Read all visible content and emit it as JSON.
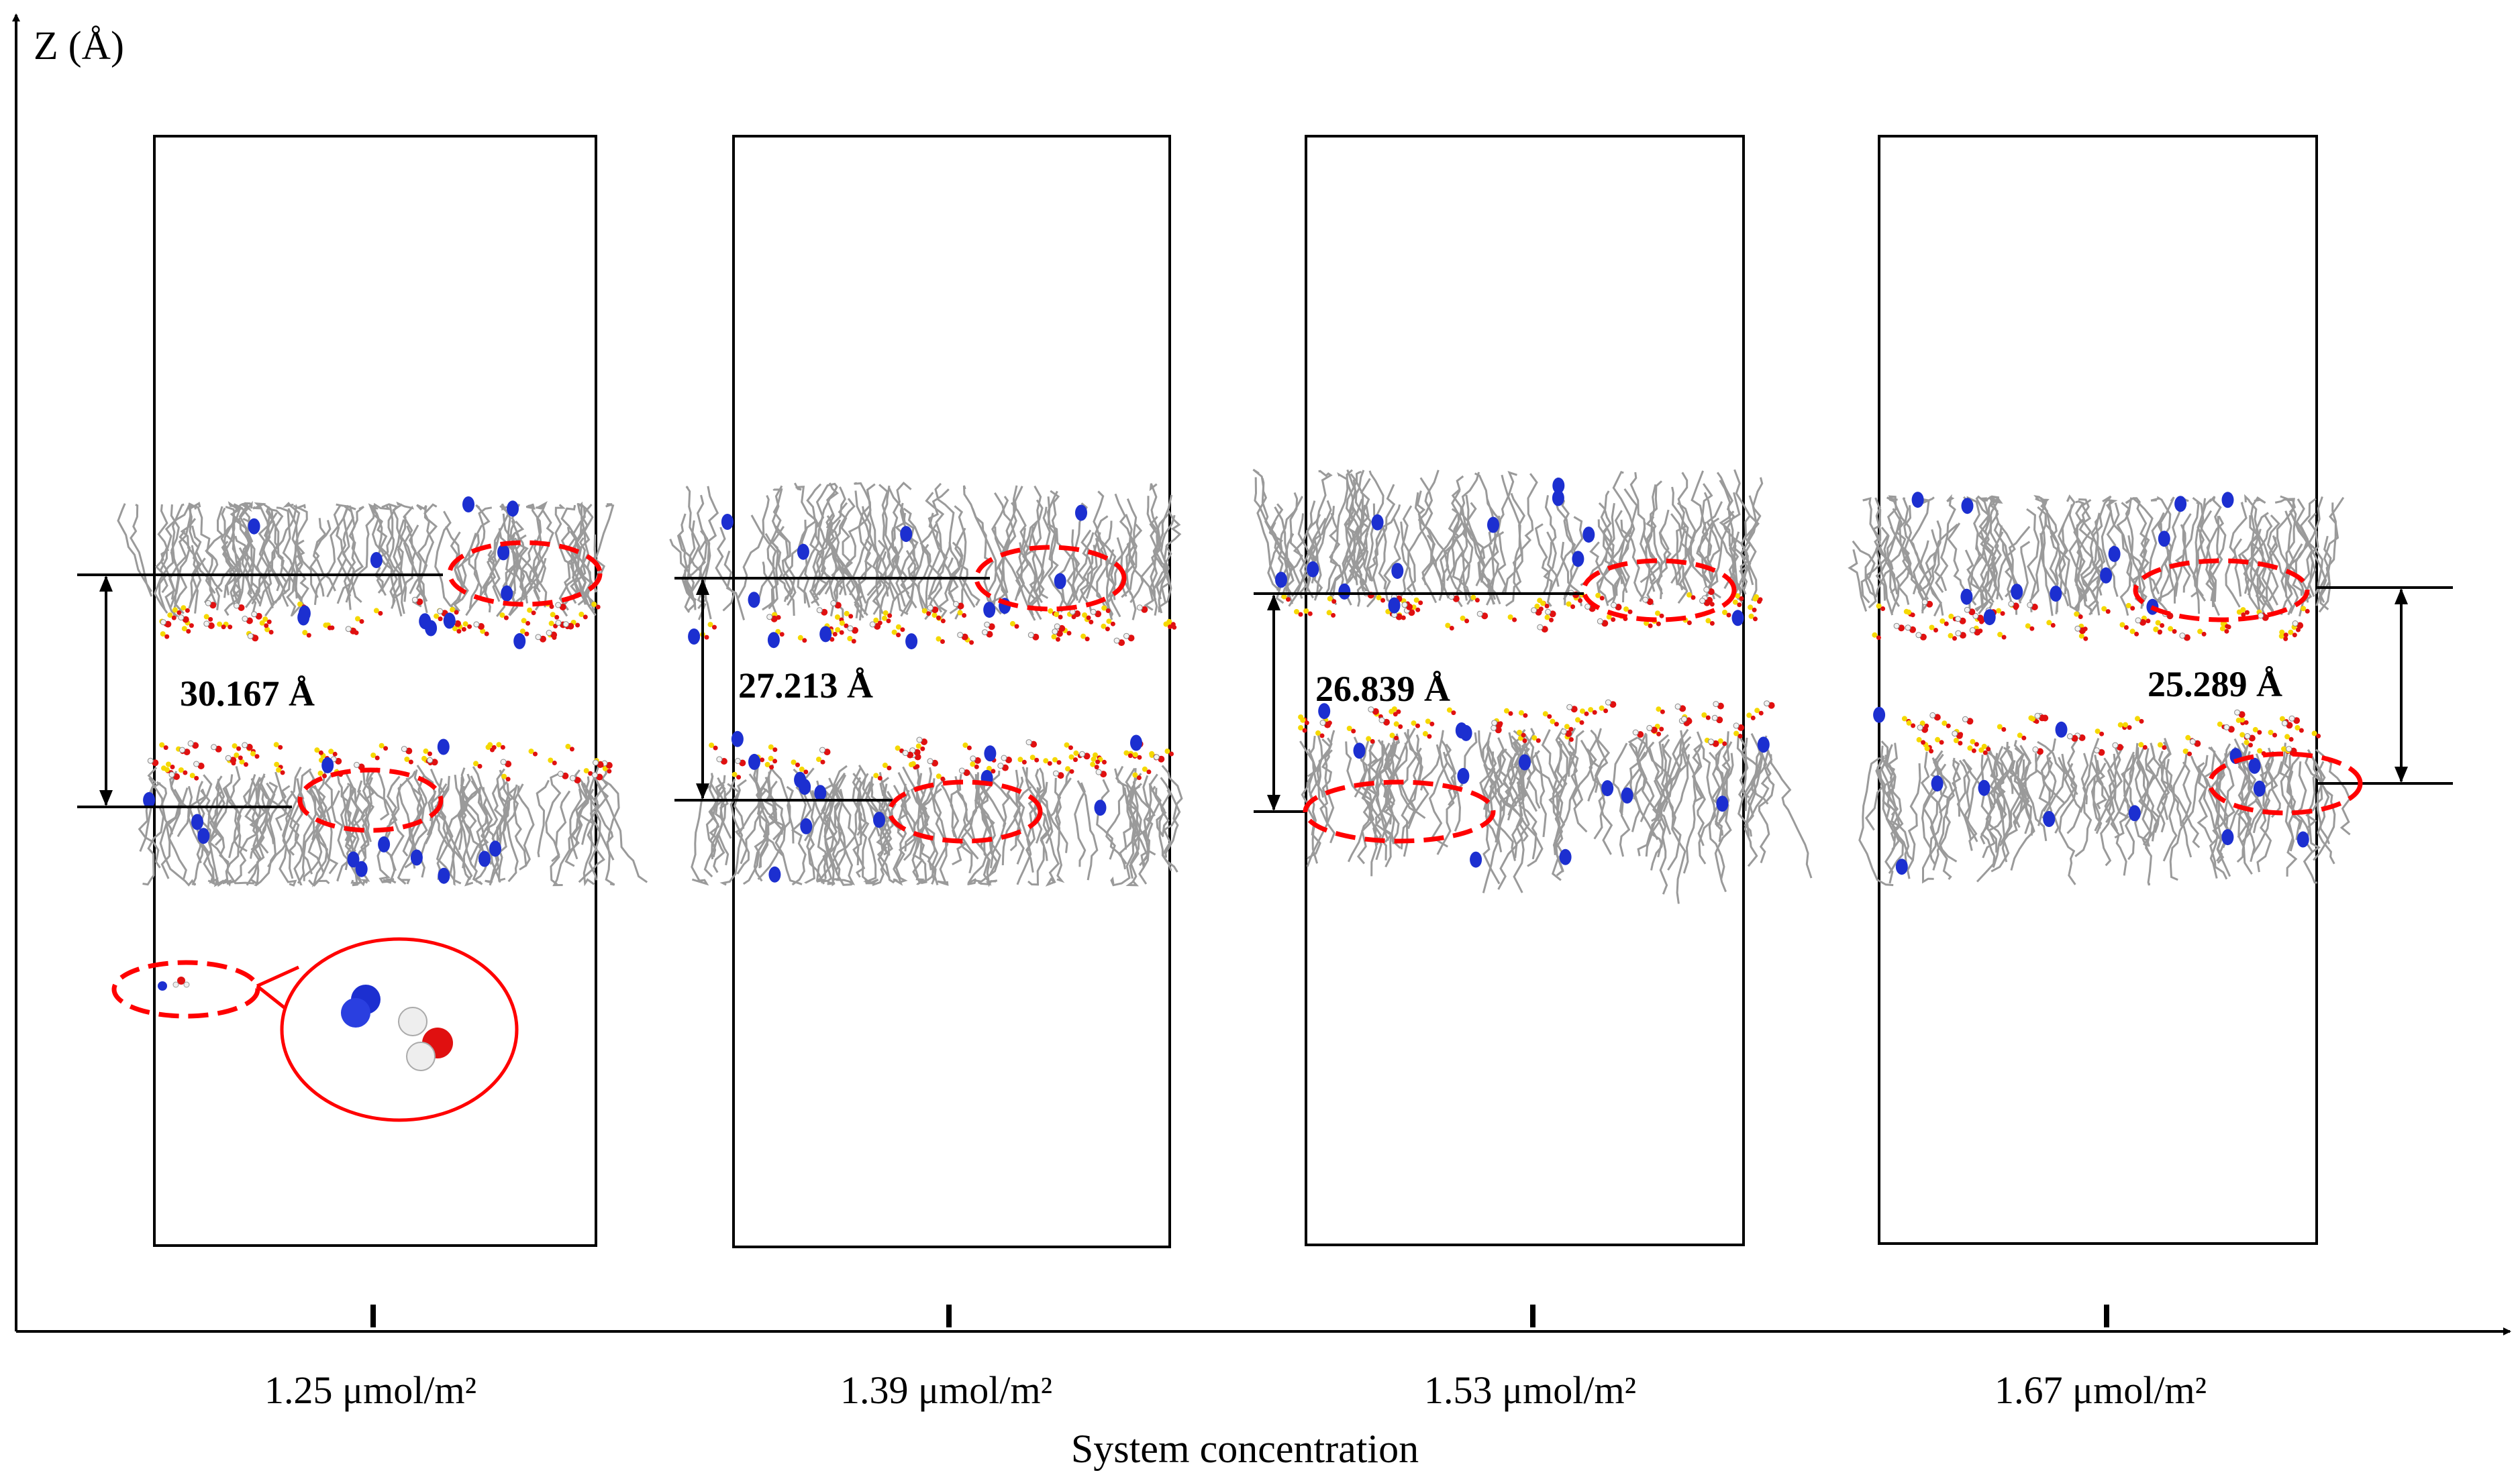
{
  "axis": {
    "y_label": "Z (Å)",
    "x_label": "System concentration"
  },
  "panels": [
    {
      "concentration": "1.25 μmol/m²",
      "separation": "30.167 Å"
    },
    {
      "concentration": "1.39 μmol/m²",
      "separation": "27.213 Å"
    },
    {
      "concentration": "1.53 μmol/m²",
      "separation": "26.839 Å"
    },
    {
      "concentration": "1.67 μmol/m²",
      "separation": "25.289 Å"
    }
  ],
  "colors": {
    "box": "#000000",
    "highlight": "#ff0000",
    "chain": "#9a9a9a",
    "cation": "#1c2fd0",
    "oxygen": "#e01010",
    "hydrogen": "#f2f2f2",
    "sulfur": "#f5d800"
  }
}
